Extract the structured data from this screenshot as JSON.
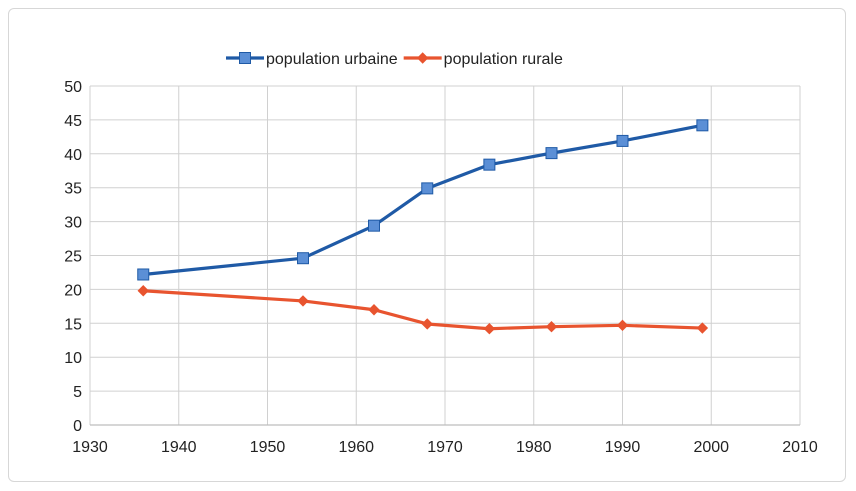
{
  "chart_data": {
    "type": "line",
    "title": "",
    "xlabel": "",
    "ylabel": "",
    "xlim": [
      1930,
      2010
    ],
    "ylim": [
      0,
      50
    ],
    "x_ticks": [
      1930,
      1940,
      1950,
      1960,
      1970,
      1980,
      1990,
      2000,
      2010
    ],
    "y_ticks": [
      0,
      5,
      10,
      15,
      20,
      25,
      30,
      35,
      40,
      45,
      50
    ],
    "grid": true,
    "legend_position": "top-center",
    "series": [
      {
        "name": "population urbaine",
        "color": "#1f5aa6",
        "marker": "square",
        "points": [
          {
            "x": 1936,
            "y": 22.2
          },
          {
            "x": 1954,
            "y": 24.6
          },
          {
            "x": 1962,
            "y": 29.4
          },
          {
            "x": 1968,
            "y": 34.9
          },
          {
            "x": 1975,
            "y": 38.4
          },
          {
            "x": 1982,
            "y": 40.1
          },
          {
            "x": 1990,
            "y": 41.9
          },
          {
            "x": 1999,
            "y": 44.2
          }
        ]
      },
      {
        "name": "population rurale",
        "color": "#e8542f",
        "marker": "diamond",
        "points": [
          {
            "x": 1936,
            "y": 19.8
          },
          {
            "x": 1954,
            "y": 18.3
          },
          {
            "x": 1962,
            "y": 17.0
          },
          {
            "x": 1968,
            "y": 14.9
          },
          {
            "x": 1975,
            "y": 14.2
          },
          {
            "x": 1982,
            "y": 14.5
          },
          {
            "x": 1990,
            "y": 14.7
          },
          {
            "x": 1999,
            "y": 14.3
          }
        ]
      }
    ]
  }
}
